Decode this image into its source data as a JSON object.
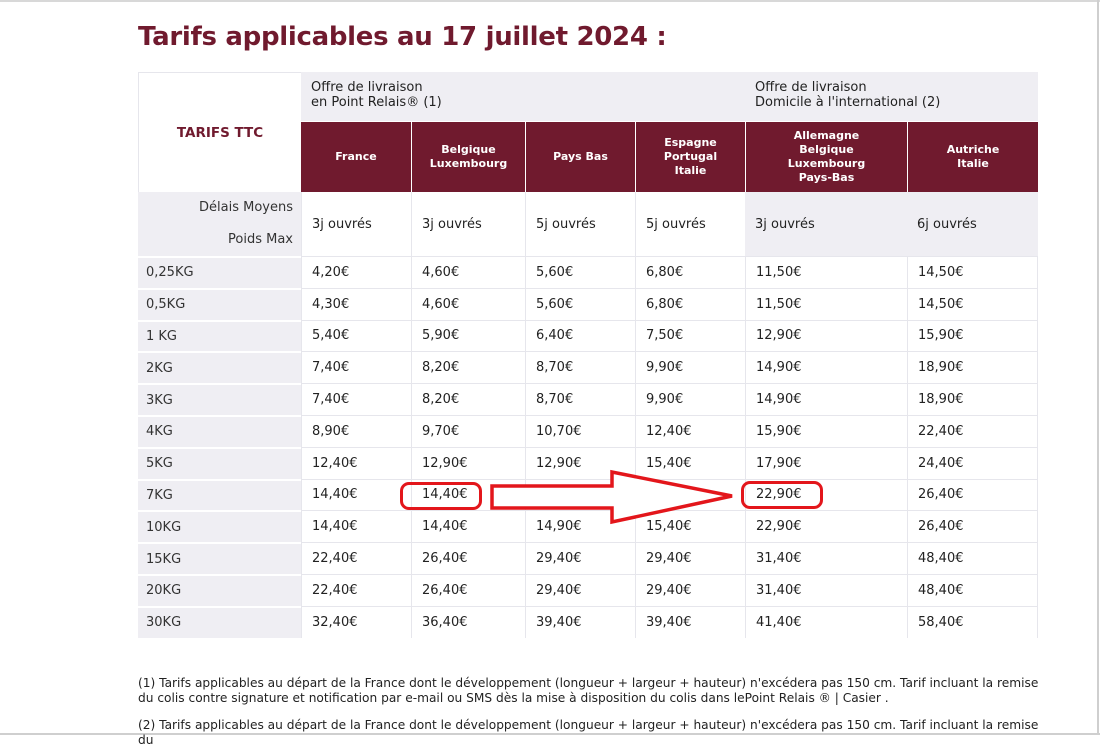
{
  "title": "Tarifs applicables au 17 juillet 2024 :",
  "table": {
    "corner_label": "TARIFS TTC",
    "offer_point_relais": [
      "Offre de livraison",
      "en Point Relais® (1)"
    ],
    "offer_domicile": [
      "Offre de livraison",
      "Domicile à l'international (2)"
    ],
    "countries": [
      [
        "France"
      ],
      [
        "Belgique",
        "Luxembourg"
      ],
      [
        "Pays Bas"
      ],
      [
        "Espagne",
        "Portugal",
        "Italie"
      ],
      [
        "Allemagne",
        "Belgique",
        "Luxembourg",
        "Pays-Bas"
      ],
      [
        "Autriche",
        "Italie"
      ]
    ],
    "delais_label": "Délais Moyens",
    "poids_label": "Poids Max",
    "delais": [
      "3j ouvrés",
      "3j ouvrés",
      "5j ouvrés",
      "5j ouvrés",
      "3j ouvrés",
      "6j ouvrés"
    ],
    "rows": [
      {
        "weight": "0,25KG",
        "prices": [
          "4,20€",
          "4,60€",
          "5,60€",
          "6,80€",
          "11,50€",
          "14,50€"
        ]
      },
      {
        "weight": "0,5KG",
        "prices": [
          "4,30€",
          "4,60€",
          "5,60€",
          "6,80€",
          "11,50€",
          "14,50€"
        ]
      },
      {
        "weight": "1 KG",
        "prices": [
          "5,40€",
          "5,90€",
          "6,40€",
          "7,50€",
          "12,90€",
          "15,90€"
        ]
      },
      {
        "weight": "2KG",
        "prices": [
          "7,40€",
          "8,20€",
          "8,70€",
          "9,90€",
          "14,90€",
          "18,90€"
        ]
      },
      {
        "weight": "3KG",
        "prices": [
          "7,40€",
          "8,20€",
          "8,70€",
          "9,90€",
          "14,90€",
          "18,90€"
        ]
      },
      {
        "weight": "4KG",
        "prices": [
          "8,90€",
          "9,70€",
          "10,70€",
          "12,40€",
          "15,90€",
          "22,40€"
        ]
      },
      {
        "weight": "5KG",
        "prices": [
          "12,40€",
          "12,90€",
          "12,90€",
          "15,40€",
          "17,90€",
          "24,40€"
        ]
      },
      {
        "weight": "7KG",
        "prices": [
          "14,40€",
          "14,40€",
          "",
          "",
          "22,90€",
          "26,40€"
        ]
      },
      {
        "weight": "10KG",
        "prices": [
          "14,40€",
          "14,40€",
          "14,90€",
          "15,40€",
          "22,90€",
          "26,40€"
        ]
      },
      {
        "weight": "15KG",
        "prices": [
          "22,40€",
          "26,40€",
          "29,40€",
          "29,40€",
          "31,40€",
          "48,40€"
        ]
      },
      {
        "weight": "20KG",
        "prices": [
          "22,40€",
          "26,40€",
          "29,40€",
          "29,40€",
          "31,40€",
          "48,40€"
        ]
      },
      {
        "weight": "30KG",
        "prices": [
          "32,40€",
          "36,40€",
          "39,40€",
          "39,40€",
          "41,40€",
          "58,40€"
        ]
      }
    ]
  },
  "footnotes": {
    "note1": "(1) Tarifs applicables au départ de la France dont le développement (longueur + largeur + hauteur) n'excédera pas 150 cm. Tarif incluant la remise du colis contre signature et notification par e-mail ou SMS dès la mise à disposition du colis dans lePoint Relais ® | Casier .",
    "note2": "(2) Tarifs applicables au départ de la France dont le développement (longueur + largeur + hauteur) n'excédera pas 150 cm. Tarif incluant la remise du"
  },
  "colors": {
    "brand": "#701a2e",
    "header_bg": "#efeef3",
    "annotation": "#e3161b"
  }
}
